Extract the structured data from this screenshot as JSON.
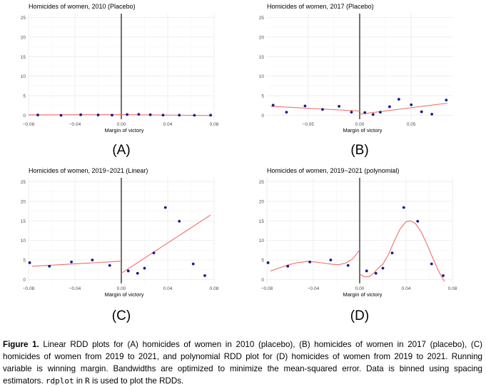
{
  "colors": {
    "grid": "#ebebeb",
    "gridMinor": "#f4f4f4",
    "point": "#1a1a8c",
    "fit": "#f26d6d",
    "cutoff": "#000000",
    "axis": "#333333",
    "tick": "#4d4d4d"
  },
  "chart_data": [
    {
      "type": "scatter",
      "title": "Homicides of women, 2010 (Placebo)",
      "xlabel": "Margin of victory",
      "ylabel": "",
      "panel_label": "(A)",
      "xlim": [
        -0.08,
        0.08
      ],
      "ylim": [
        -1,
        26
      ],
      "xticks": [
        -0.08,
        -0.04,
        0.0,
        0.04,
        0.08
      ],
      "xtick_labels": [
        "−0.08",
        "−0.04",
        "0.00",
        "0.04",
        "0.08"
      ],
      "yticks": [
        0,
        5,
        10,
        15,
        20,
        25
      ],
      "ytick_labels": [
        "0",
        "5",
        "10",
        "15",
        "20",
        "25"
      ],
      "points": [
        [
          -0.072,
          0.1
        ],
        [
          -0.052,
          0.0
        ],
        [
          -0.035,
          0.15
        ],
        [
          -0.02,
          0.1
        ],
        [
          -0.008,
          0.05
        ],
        [
          0.005,
          0.2
        ],
        [
          0.015,
          0.25
        ],
        [
          0.025,
          0.15
        ],
        [
          0.036,
          0.05
        ],
        [
          0.05,
          0.05
        ],
        [
          0.063,
          0.0
        ],
        [
          0.077,
          0.05
        ]
      ],
      "fit_left": [
        [
          -0.08,
          0.12
        ],
        [
          0.0,
          0.18
        ]
      ],
      "fit_right": [
        [
          0.0,
          0.18
        ],
        [
          0.077,
          -0.05
        ]
      ]
    },
    {
      "type": "scatter",
      "title": "Homicides of women, 2017 (Placebo)",
      "xlabel": "Margin of victory",
      "ylabel": "",
      "panel_label": "(B)",
      "xlim": [
        -0.09,
        0.09
      ],
      "ylim": [
        -1,
        26
      ],
      "xticks": [
        -0.05,
        0.0,
        0.05
      ],
      "xtick_labels": [
        "−0.05",
        "0.00",
        "0.05"
      ],
      "yticks": [
        0,
        5,
        10,
        15,
        20,
        25
      ],
      "ytick_labels": [
        "0",
        "5",
        "10",
        "15",
        "20",
        "25"
      ],
      "points": [
        [
          -0.084,
          2.6
        ],
        [
          -0.071,
          0.8
        ],
        [
          -0.053,
          2.4
        ],
        [
          -0.036,
          1.5
        ],
        [
          -0.02,
          2.3
        ],
        [
          -0.008,
          0.8
        ],
        [
          0.005,
          0.7
        ],
        [
          0.013,
          0.2
        ],
        [
          0.02,
          0.8
        ],
        [
          0.029,
          2.2
        ],
        [
          0.038,
          4.1
        ],
        [
          0.05,
          2.7
        ],
        [
          0.06,
          0.9
        ],
        [
          0.07,
          0.3
        ],
        [
          0.084,
          3.9
        ]
      ],
      "fit_left": [
        [
          -0.086,
          2.3
        ],
        [
          0.0,
          1.1
        ]
      ],
      "fit_right": [
        [
          0.0,
          0.3
        ],
        [
          0.085,
          3.1
        ]
      ]
    },
    {
      "type": "scatter",
      "title": "Homicides of women, 2019−2021 (Linear)",
      "xlabel": "Margin of victory",
      "ylabel": "",
      "panel_label": "(C)",
      "xlim": [
        -0.08,
        0.08
      ],
      "ylim": [
        -1,
        26
      ],
      "xticks": [
        -0.08,
        -0.04,
        0.0,
        0.04,
        0.08
      ],
      "xtick_labels": [
        "−0.08",
        "−0.04",
        "0.00",
        "0.04",
        "0.08"
      ],
      "yticks": [
        0,
        5,
        10,
        15,
        20,
        25
      ],
      "ytick_labels": [
        "0",
        "5",
        "10",
        "15",
        "20",
        "25"
      ],
      "points": [
        [
          -0.079,
          4.3
        ],
        [
          -0.062,
          3.4
        ],
        [
          -0.043,
          4.5
        ],
        [
          -0.025,
          5.0
        ],
        [
          -0.01,
          3.6
        ],
        [
          0.006,
          2.2
        ],
        [
          0.014,
          1.6
        ],
        [
          0.02,
          2.9
        ],
        [
          0.028,
          6.8
        ],
        [
          0.038,
          18.4
        ],
        [
          0.05,
          14.9
        ],
        [
          0.062,
          4.0
        ],
        [
          0.072,
          1.0
        ]
      ],
      "fit_left": [
        [
          -0.077,
          3.4
        ],
        [
          0.0,
          4.7
        ]
      ],
      "fit_right": [
        [
          0.0,
          1.6
        ],
        [
          0.077,
          16.5
        ]
      ]
    },
    {
      "type": "scatter",
      "title": "Homicides of women, 2019−2021 (polynomial)",
      "xlabel": "Margin of victory",
      "ylabel": "",
      "panel_label": "(D)",
      "xlim": [
        -0.08,
        0.08
      ],
      "ylim": [
        -1,
        26
      ],
      "xticks": [
        -0.08,
        -0.04,
        0.0,
        0.04,
        0.08
      ],
      "xtick_labels": [
        "−0.08",
        "−0.04",
        "0.00",
        "0.04",
        "0.08"
      ],
      "yticks": [
        0,
        5,
        10,
        15,
        20,
        25
      ],
      "ytick_labels": [
        "0",
        "5",
        "10",
        "15",
        "20",
        "25"
      ],
      "points": [
        [
          -0.079,
          4.3
        ],
        [
          -0.062,
          3.4
        ],
        [
          -0.043,
          4.5
        ],
        [
          -0.025,
          5.0
        ],
        [
          -0.01,
          3.6
        ],
        [
          0.006,
          2.2
        ],
        [
          0.014,
          1.6
        ],
        [
          0.02,
          2.9
        ],
        [
          0.028,
          6.8
        ],
        [
          0.038,
          18.4
        ],
        [
          0.05,
          14.9
        ],
        [
          0.062,
          4.0
        ],
        [
          0.072,
          1.0
        ]
      ],
      "fit_left": [
        [
          -0.077,
          2.2
        ],
        [
          -0.07,
          2.9
        ],
        [
          -0.062,
          3.7
        ],
        [
          -0.054,
          4.3
        ],
        [
          -0.046,
          4.6
        ],
        [
          -0.038,
          4.5
        ],
        [
          -0.031,
          4.2
        ],
        [
          -0.024,
          3.9
        ],
        [
          -0.018,
          3.8
        ],
        [
          -0.012,
          4.2
        ],
        [
          -0.006,
          5.3
        ],
        [
          0.0,
          7.6
        ]
      ],
      "fit_right": [
        [
          0.0,
          1.4
        ],
        [
          0.004,
          0.7
        ],
        [
          0.008,
          0.7
        ],
        [
          0.012,
          1.6
        ],
        [
          0.016,
          2.9
        ],
        [
          0.02,
          3.9
        ],
        [
          0.025,
          6.5
        ],
        [
          0.03,
          10.0
        ],
        [
          0.035,
          13.0
        ],
        [
          0.04,
          14.8
        ],
        [
          0.044,
          15.0
        ],
        [
          0.048,
          14.3
        ],
        [
          0.053,
          12.2
        ],
        [
          0.058,
          9.0
        ],
        [
          0.063,
          5.5
        ],
        [
          0.068,
          2.2
        ],
        [
          0.072,
          0.0
        ],
        [
          0.073,
          -0.5
        ]
      ]
    }
  ],
  "caption": {
    "label": "Figure 1.",
    "text_before_code": " Linear RDD plots for (A) homicides of women in 2010 (placebo), (B) homicides of women in 2017 (placebo), (C) homicides of women from 2019 to 2021, and polynomial RDD plot for (D) homicides of women from 2019 to 2021. Running variable is winning margin. Bandwidths are optimized to minimize the mean-squared error. Data is binned using spacing estimators. ",
    "code1": "rdplot",
    "middle": " in ",
    "code2": "R",
    "end": " is used to plot the RDDs."
  }
}
